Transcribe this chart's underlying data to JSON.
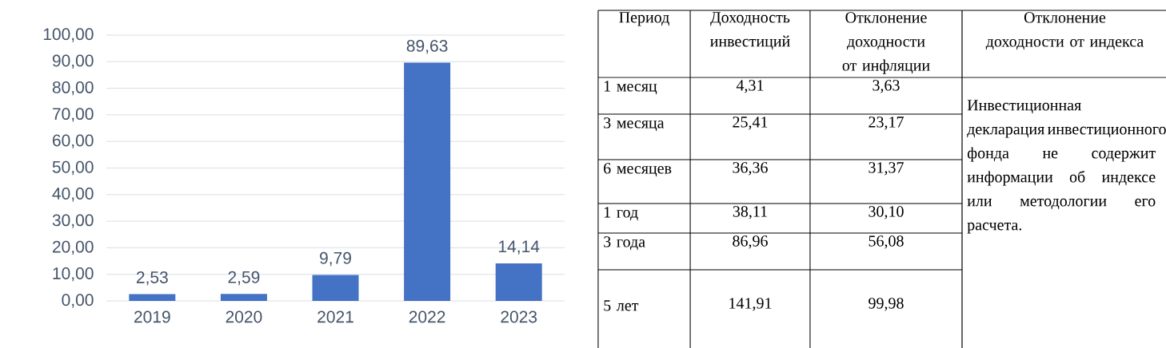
{
  "chart_data": [
    {
      "type": "bar",
      "categories": [
        "2019",
        "2020",
        "2021",
        "2022",
        "2023"
      ],
      "values": [
        2.53,
        2.59,
        9.79,
        89.63,
        14.14
      ],
      "value_labels": [
        "2,53",
        "2,59",
        "9,79",
        "89,63",
        "14,14"
      ],
      "color": "#4472c4",
      "ylim": [
        0,
        100
      ],
      "yticks": [
        {
          "value": 0,
          "label": "0,00"
        },
        {
          "value": 10,
          "label": "10,00"
        },
        {
          "value": 20,
          "label": "20,00"
        },
        {
          "value": 30,
          "label": "30,00"
        },
        {
          "value": 40,
          "label": "40,00"
        },
        {
          "value": 50,
          "label": "50,00"
        },
        {
          "value": 60,
          "label": "60,00"
        },
        {
          "value": 70,
          "label": "70,00"
        },
        {
          "value": 80,
          "label": "80,00"
        },
        {
          "value": 90,
          "label": "90,00"
        },
        {
          "value": 100,
          "label": "100,00"
        }
      ],
      "grid": "y"
    },
    {
      "type": "other",
      "annotations": [
        "Период",
        "Доходность инвестиций",
        "Отклонение доходности от инфляции",
        "Отклонение доходности от индекса",
        "1 месяц",
        "4,31",
        "3,63",
        "3 месяца",
        "25,41",
        "23,17",
        "6 месяцев",
        "36,36",
        "31,37",
        "1 год",
        "38,11",
        "30,10",
        "3 года",
        "86,96",
        "56,08",
        "5 лет",
        "141,91",
        "99,98",
        "Инвестиционная декларация инвестиционного фонда не содержит информации об индексе или методологии его расчета."
      ]
    }
  ]
}
